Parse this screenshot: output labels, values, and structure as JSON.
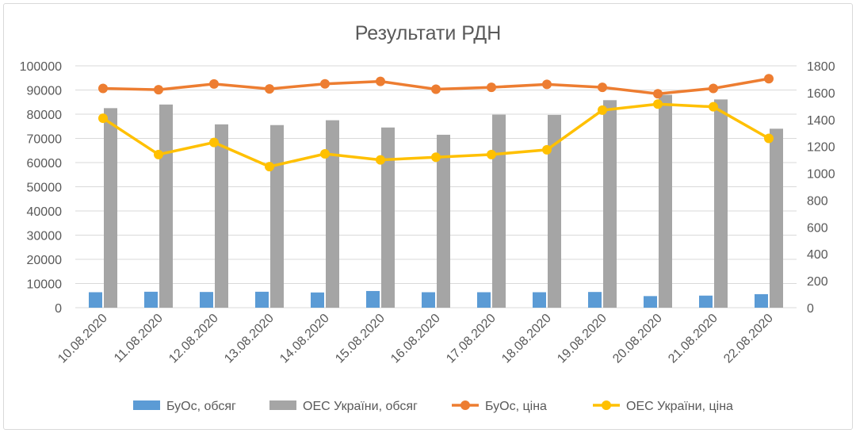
{
  "chart_data": {
    "type": "bar",
    "title": "Результати РДН",
    "categories": [
      "10.08.2020",
      "11.08.2020",
      "12.08.2020",
      "13.08.2020",
      "14.08.2020",
      "15.08.2020",
      "16.08.2020",
      "17.08.2020",
      "18.08.2020",
      "19.08.2020",
      "20.08.2020",
      "21.08.2020",
      "22.08.2020"
    ],
    "y_left": {
      "min": 0,
      "max": 100000,
      "step": 10000
    },
    "y_right": {
      "min": 0,
      "max": 1800,
      "step": 200
    },
    "grid": true,
    "legend_position": "bottom",
    "series": [
      {
        "name": "БуОс, обсяг",
        "kind": "bar",
        "axis": "left",
        "color": "#5b9bd5",
        "values": [
          6400,
          6600,
          6500,
          6600,
          6300,
          6900,
          6400,
          6400,
          6400,
          6500,
          4800,
          5000,
          5600
        ]
      },
      {
        "name": "ОЕС України, обсяг",
        "kind": "bar",
        "axis": "left",
        "color": "#a5a5a5",
        "values": [
          82500,
          84000,
          75800,
          75500,
          77500,
          74500,
          71500,
          79800,
          79700,
          85800,
          88000,
          86100,
          74000
        ]
      },
      {
        "name": "БуОс, ціна",
        "kind": "line",
        "axis": "right",
        "color": "#ed7d31",
        "values": [
          1632,
          1622,
          1665,
          1628,
          1666,
          1684,
          1626,
          1640,
          1662,
          1640,
          1592,
          1632,
          1704
        ]
      },
      {
        "name": "ОЕС України, ціна",
        "kind": "line",
        "axis": "right",
        "color": "#ffc000",
        "values": [
          1410,
          1140,
          1230,
          1050,
          1145,
          1100,
          1120,
          1140,
          1175,
          1470,
          1515,
          1495,
          1260
        ]
      }
    ]
  }
}
